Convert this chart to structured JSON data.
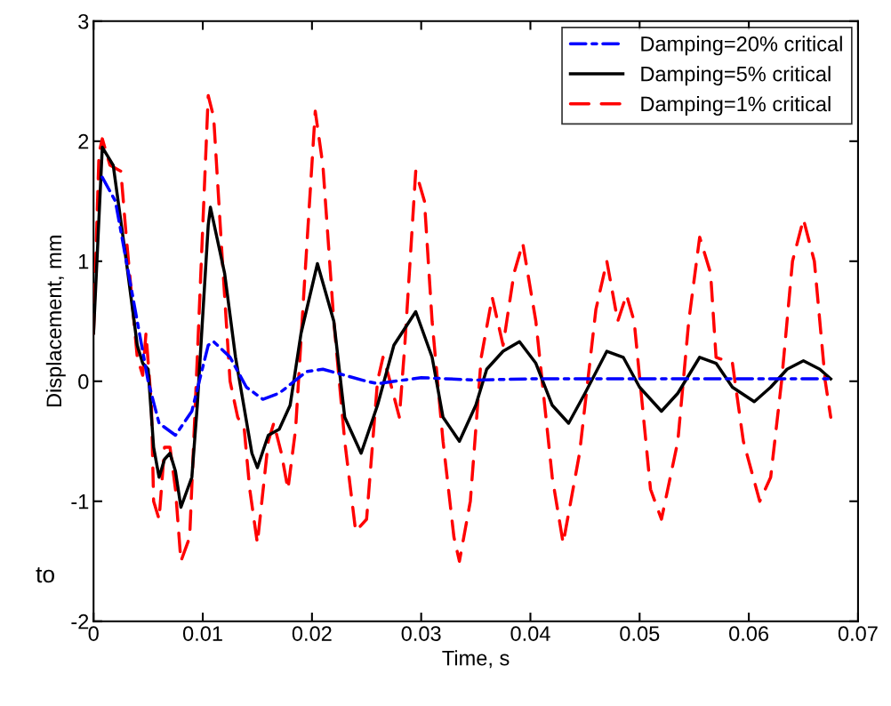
{
  "chart_data": {
    "type": "line",
    "xlabel": "Time, s",
    "ylabel": "Displacement, mm",
    "xlim": [
      0,
      0.07
    ],
    "xticks": [
      0,
      0.01,
      0.02,
      0.03,
      0.04,
      0.05,
      0.06,
      0.07
    ],
    "ylim": [
      -2,
      3
    ],
    "yticks": [
      -2,
      -1,
      0,
      1,
      2,
      3
    ],
    "grid": false,
    "legend": "top right",
    "annotations": [
      "to"
    ],
    "series": [
      {
        "name": "Damping=20% critical",
        "color": "#0000ff",
        "line_style": "dashdot",
        "x": [
          0.0008,
          0.002,
          0.003,
          0.004,
          0.005,
          0.006,
          0.0075,
          0.009,
          0.0105,
          0.011,
          0.0125,
          0.014,
          0.0155,
          0.017,
          0.0195,
          0.021,
          0.023,
          0.025,
          0.026,
          0.03,
          0.035,
          0.04,
          0.05,
          0.06,
          0.0675
        ],
        "values": [
          1.7,
          1.5,
          1.0,
          0.5,
          0.0,
          -0.35,
          -0.45,
          -0.25,
          0.3,
          0.33,
          0.2,
          -0.05,
          -0.15,
          -0.1,
          0.08,
          0.1,
          0.05,
          0.0,
          -0.02,
          0.03,
          0.01,
          0.02,
          0.02,
          0.02,
          0.02
        ]
      },
      {
        "name": "Damping=5% critical",
        "color": "#000000",
        "line_style": "solid",
        "x": [
          0,
          0.0008,
          0.0018,
          0.003,
          0.004,
          0.0045,
          0.005,
          0.0055,
          0.006,
          0.0065,
          0.007,
          0.0075,
          0.008,
          0.009,
          0.0095,
          0.0105,
          0.0107,
          0.012,
          0.013,
          0.0145,
          0.015,
          0.016,
          0.017,
          0.018,
          0.019,
          0.0205,
          0.022,
          0.023,
          0.0245,
          0.026,
          0.0275,
          0.0295,
          0.031,
          0.032,
          0.0335,
          0.035,
          0.036,
          0.0375,
          0.039,
          0.0405,
          0.042,
          0.0435,
          0.045,
          0.047,
          0.0485,
          0.05,
          0.052,
          0.0535,
          0.0555,
          0.057,
          0.0585,
          0.0605,
          0.062,
          0.0635,
          0.065,
          0.0665,
          0.0675
        ],
        "values": [
          0.4,
          1.95,
          1.8,
          1.0,
          0.3,
          0.15,
          0.1,
          -0.55,
          -0.8,
          -0.65,
          -0.6,
          -0.75,
          -1.05,
          -0.8,
          -0.2,
          1.3,
          1.45,
          0.9,
          0.2,
          -0.6,
          -0.72,
          -0.45,
          -0.4,
          -0.2,
          0.4,
          0.98,
          0.5,
          -0.3,
          -0.6,
          -0.2,
          0.3,
          0.58,
          0.2,
          -0.3,
          -0.5,
          -0.2,
          0.1,
          0.25,
          0.33,
          0.15,
          -0.2,
          -0.35,
          -0.1,
          0.25,
          0.2,
          -0.05,
          -0.25,
          -0.1,
          0.2,
          0.15,
          -0.05,
          -0.17,
          -0.05,
          0.1,
          0.17,
          0.1,
          0.02
        ]
      },
      {
        "name": "Damping=1% critical",
        "color": "#ff0000",
        "line_style": "dashed",
        "x": [
          0,
          0.0005,
          0.0008,
          0.0015,
          0.0025,
          0.003,
          0.004,
          0.0045,
          0.0048,
          0.0053,
          0.0055,
          0.006,
          0.0065,
          0.007,
          0.0075,
          0.008,
          0.0088,
          0.0095,
          0.0105,
          0.011,
          0.0118,
          0.0125,
          0.0132,
          0.0138,
          0.0143,
          0.015,
          0.016,
          0.0165,
          0.0172,
          0.0178,
          0.0185,
          0.0193,
          0.0203,
          0.021,
          0.022,
          0.023,
          0.024,
          0.025,
          0.026,
          0.0265,
          0.027,
          0.028,
          0.0285,
          0.0295,
          0.0303,
          0.031,
          0.032,
          0.033,
          0.0335,
          0.0345,
          0.0355,
          0.0365,
          0.0375,
          0.0385,
          0.0393,
          0.0405,
          0.042,
          0.043,
          0.0445,
          0.046,
          0.047,
          0.048,
          0.0488,
          0.0495,
          0.051,
          0.052,
          0.0535,
          0.0545,
          0.0555,
          0.0565,
          0.057,
          0.0585,
          0.0595,
          0.061,
          0.062,
          0.063,
          0.064,
          0.065,
          0.066,
          0.067,
          0.0675
        ],
        "values": [
          0.4,
          1.9,
          2.02,
          1.8,
          1.75,
          1.2,
          0.2,
          0.05,
          0.4,
          -0.2,
          -1.0,
          -1.15,
          -0.55,
          -0.55,
          -0.9,
          -1.5,
          -1.3,
          0.2,
          2.38,
          2.2,
          1.0,
          0.0,
          -0.3,
          -0.4,
          -0.9,
          -1.35,
          -0.5,
          -0.35,
          -0.6,
          -0.9,
          -0.4,
          0.8,
          2.25,
          1.8,
          0.5,
          -0.5,
          -1.25,
          -1.15,
          0.0,
          0.2,
          0.05,
          -0.3,
          0.3,
          1.75,
          1.5,
          0.5,
          -0.5,
          -1.3,
          -1.5,
          -1.0,
          0.2,
          0.7,
          0.3,
          0.9,
          1.15,
          0.5,
          -0.8,
          -1.35,
          -0.6,
          0.6,
          1.0,
          0.5,
          0.72,
          0.5,
          -0.9,
          -1.15,
          -0.5,
          0.5,
          1.2,
          0.9,
          0.2,
          0.15,
          -0.5,
          -1.0,
          -0.8,
          0.0,
          1.0,
          1.35,
          1.0,
          0.0,
          -0.3
        ]
      }
    ]
  }
}
